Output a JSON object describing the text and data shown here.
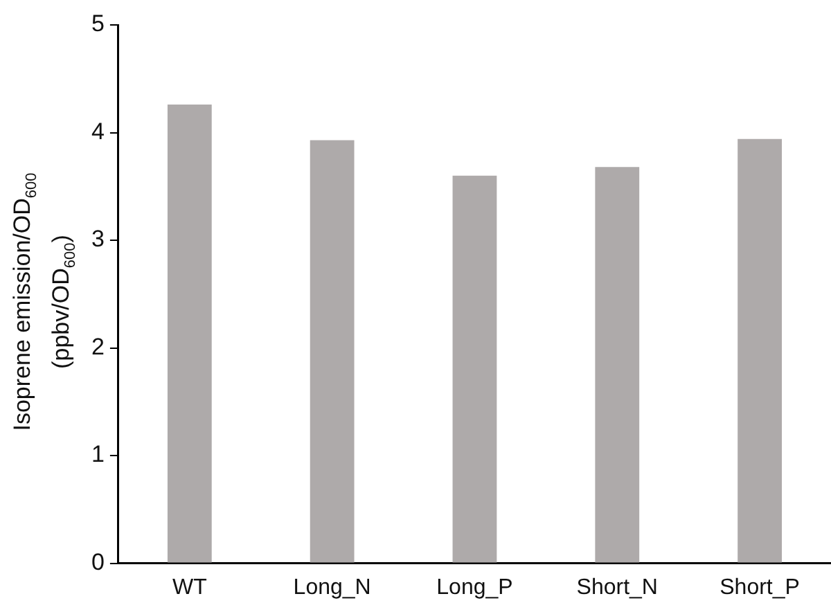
{
  "chart_data": {
    "type": "bar",
    "ylabel": "Isoprene emission/OD$_{600}$\n(ppbv/OD$_{600}$)",
    "categories": [
      "WT",
      "Long_N",
      "Long_P",
      "Short_N",
      "Short_P"
    ],
    "values": [
      4.26,
      3.93,
      3.6,
      3.68,
      3.94
    ],
    "color": "#aeaaaa",
    "ylim": [
      0,
      5
    ],
    "yticks": [
      0,
      1,
      2,
      3,
      4,
      5
    ],
    "grid": false,
    "legend": false
  }
}
